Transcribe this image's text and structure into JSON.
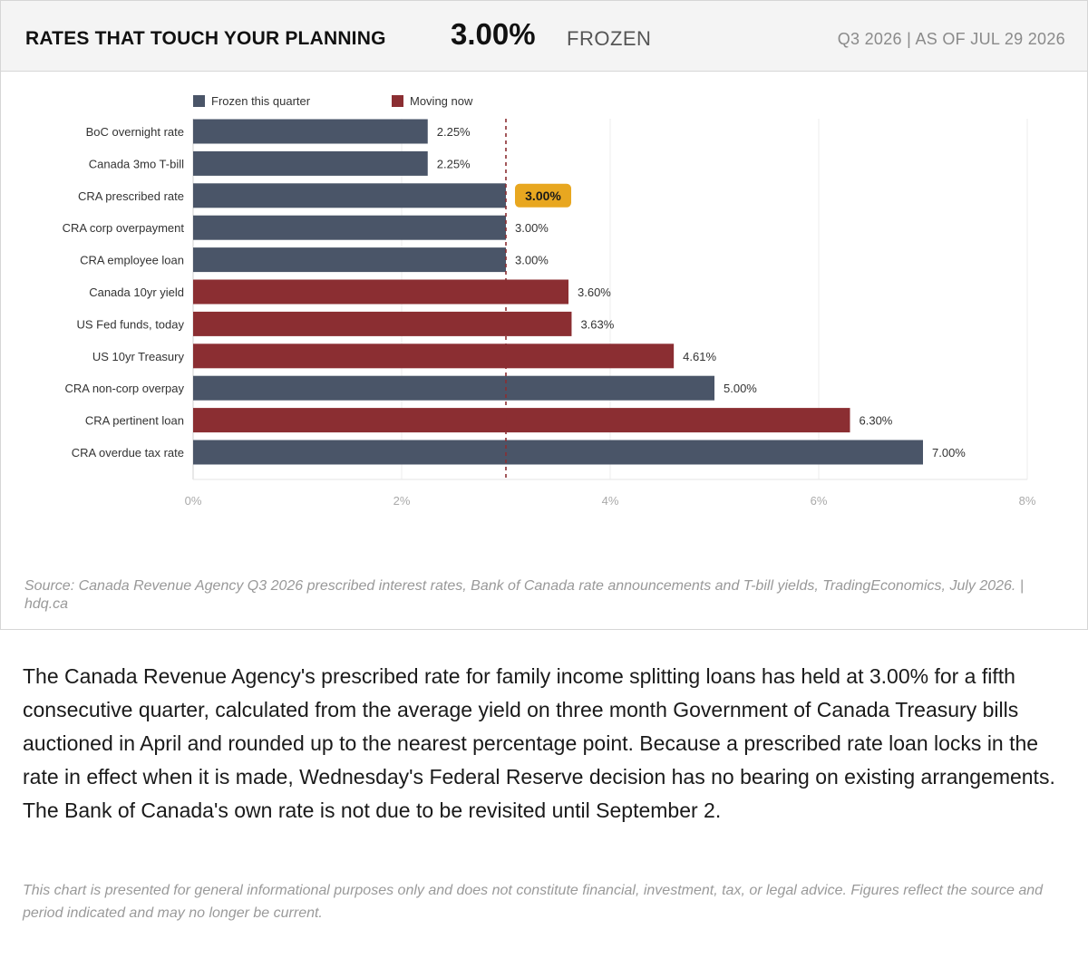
{
  "header": {
    "title": "RATES THAT TOUCH YOUR PLANNING",
    "rate": "3.00%",
    "status": "FROZEN",
    "period": "Q3 2026",
    "separator": "|",
    "as_of": "AS OF JUL 29 2026"
  },
  "chart_data": {
    "type": "bar",
    "orientation": "horizontal",
    "categories": [
      "BoC overnight rate",
      "Canada 3mo T-bill",
      "CRA prescribed rate",
      "CRA corp overpayment",
      "CRA employee loan",
      "Canada 10yr yield",
      "US Fed funds, today",
      "US 10yr Treasury",
      "CRA non-corp overpay",
      "CRA pertinent loan",
      "CRA overdue tax rate"
    ],
    "values": [
      2.25,
      2.25,
      3.0,
      3.0,
      3.0,
      3.6,
      3.63,
      4.61,
      5.0,
      6.3,
      7.0
    ],
    "value_labels": [
      "2.25%",
      "2.25%",
      "3.00%",
      "3.00%",
      "3.00%",
      "3.60%",
      "3.63%",
      "4.61%",
      "5.00%",
      "6.30%",
      "7.00%"
    ],
    "group": [
      "frozen",
      "frozen",
      "frozen",
      "frozen",
      "frozen",
      "moving",
      "moving",
      "moving",
      "frozen",
      "moving",
      "frozen"
    ],
    "highlight_index": 2,
    "legend": [
      {
        "key": "frozen",
        "name": "Frozen this quarter",
        "color": "#4a5568"
      },
      {
        "key": "moving",
        "name": "Moving now",
        "color": "#8b2e32"
      }
    ],
    "highlight_color": "#e8a720",
    "reference_line": 3.0,
    "reference_line_color": "#8b2e32",
    "xlim": [
      0,
      8
    ],
    "x_ticks": [
      0,
      2,
      4,
      6,
      8
    ],
    "x_tick_labels": [
      "0%",
      "2%",
      "4%",
      "6%",
      "8%"
    ],
    "grid": true,
    "legend_position": "top-left"
  },
  "source": "Source: Canada Revenue Agency Q3 2026 prescribed interest rates, Bank of Canada rate announcements and T-bill yields, TradingEconomics, July 2026.  |  hdq.ca",
  "body_text": "The Canada Revenue Agency's prescribed rate for family income splitting loans has held at 3.00% for a fifth consecutive quarter, calculated from the average yield on three month Government of Canada Treasury bills auctioned in April and rounded up to the nearest percentage point. Because a prescribed rate loan locks in the rate in effect when it is made, Wednesday's Federal Reserve decision has no bearing on existing arrangements. The Bank of Canada's own rate is not due to be revisited until September 2.",
  "disclaimer": "This chart is presented for general informational purposes only and does not constitute financial, investment, tax, or legal advice. Figures reflect the source and period indicated and may no longer be current."
}
